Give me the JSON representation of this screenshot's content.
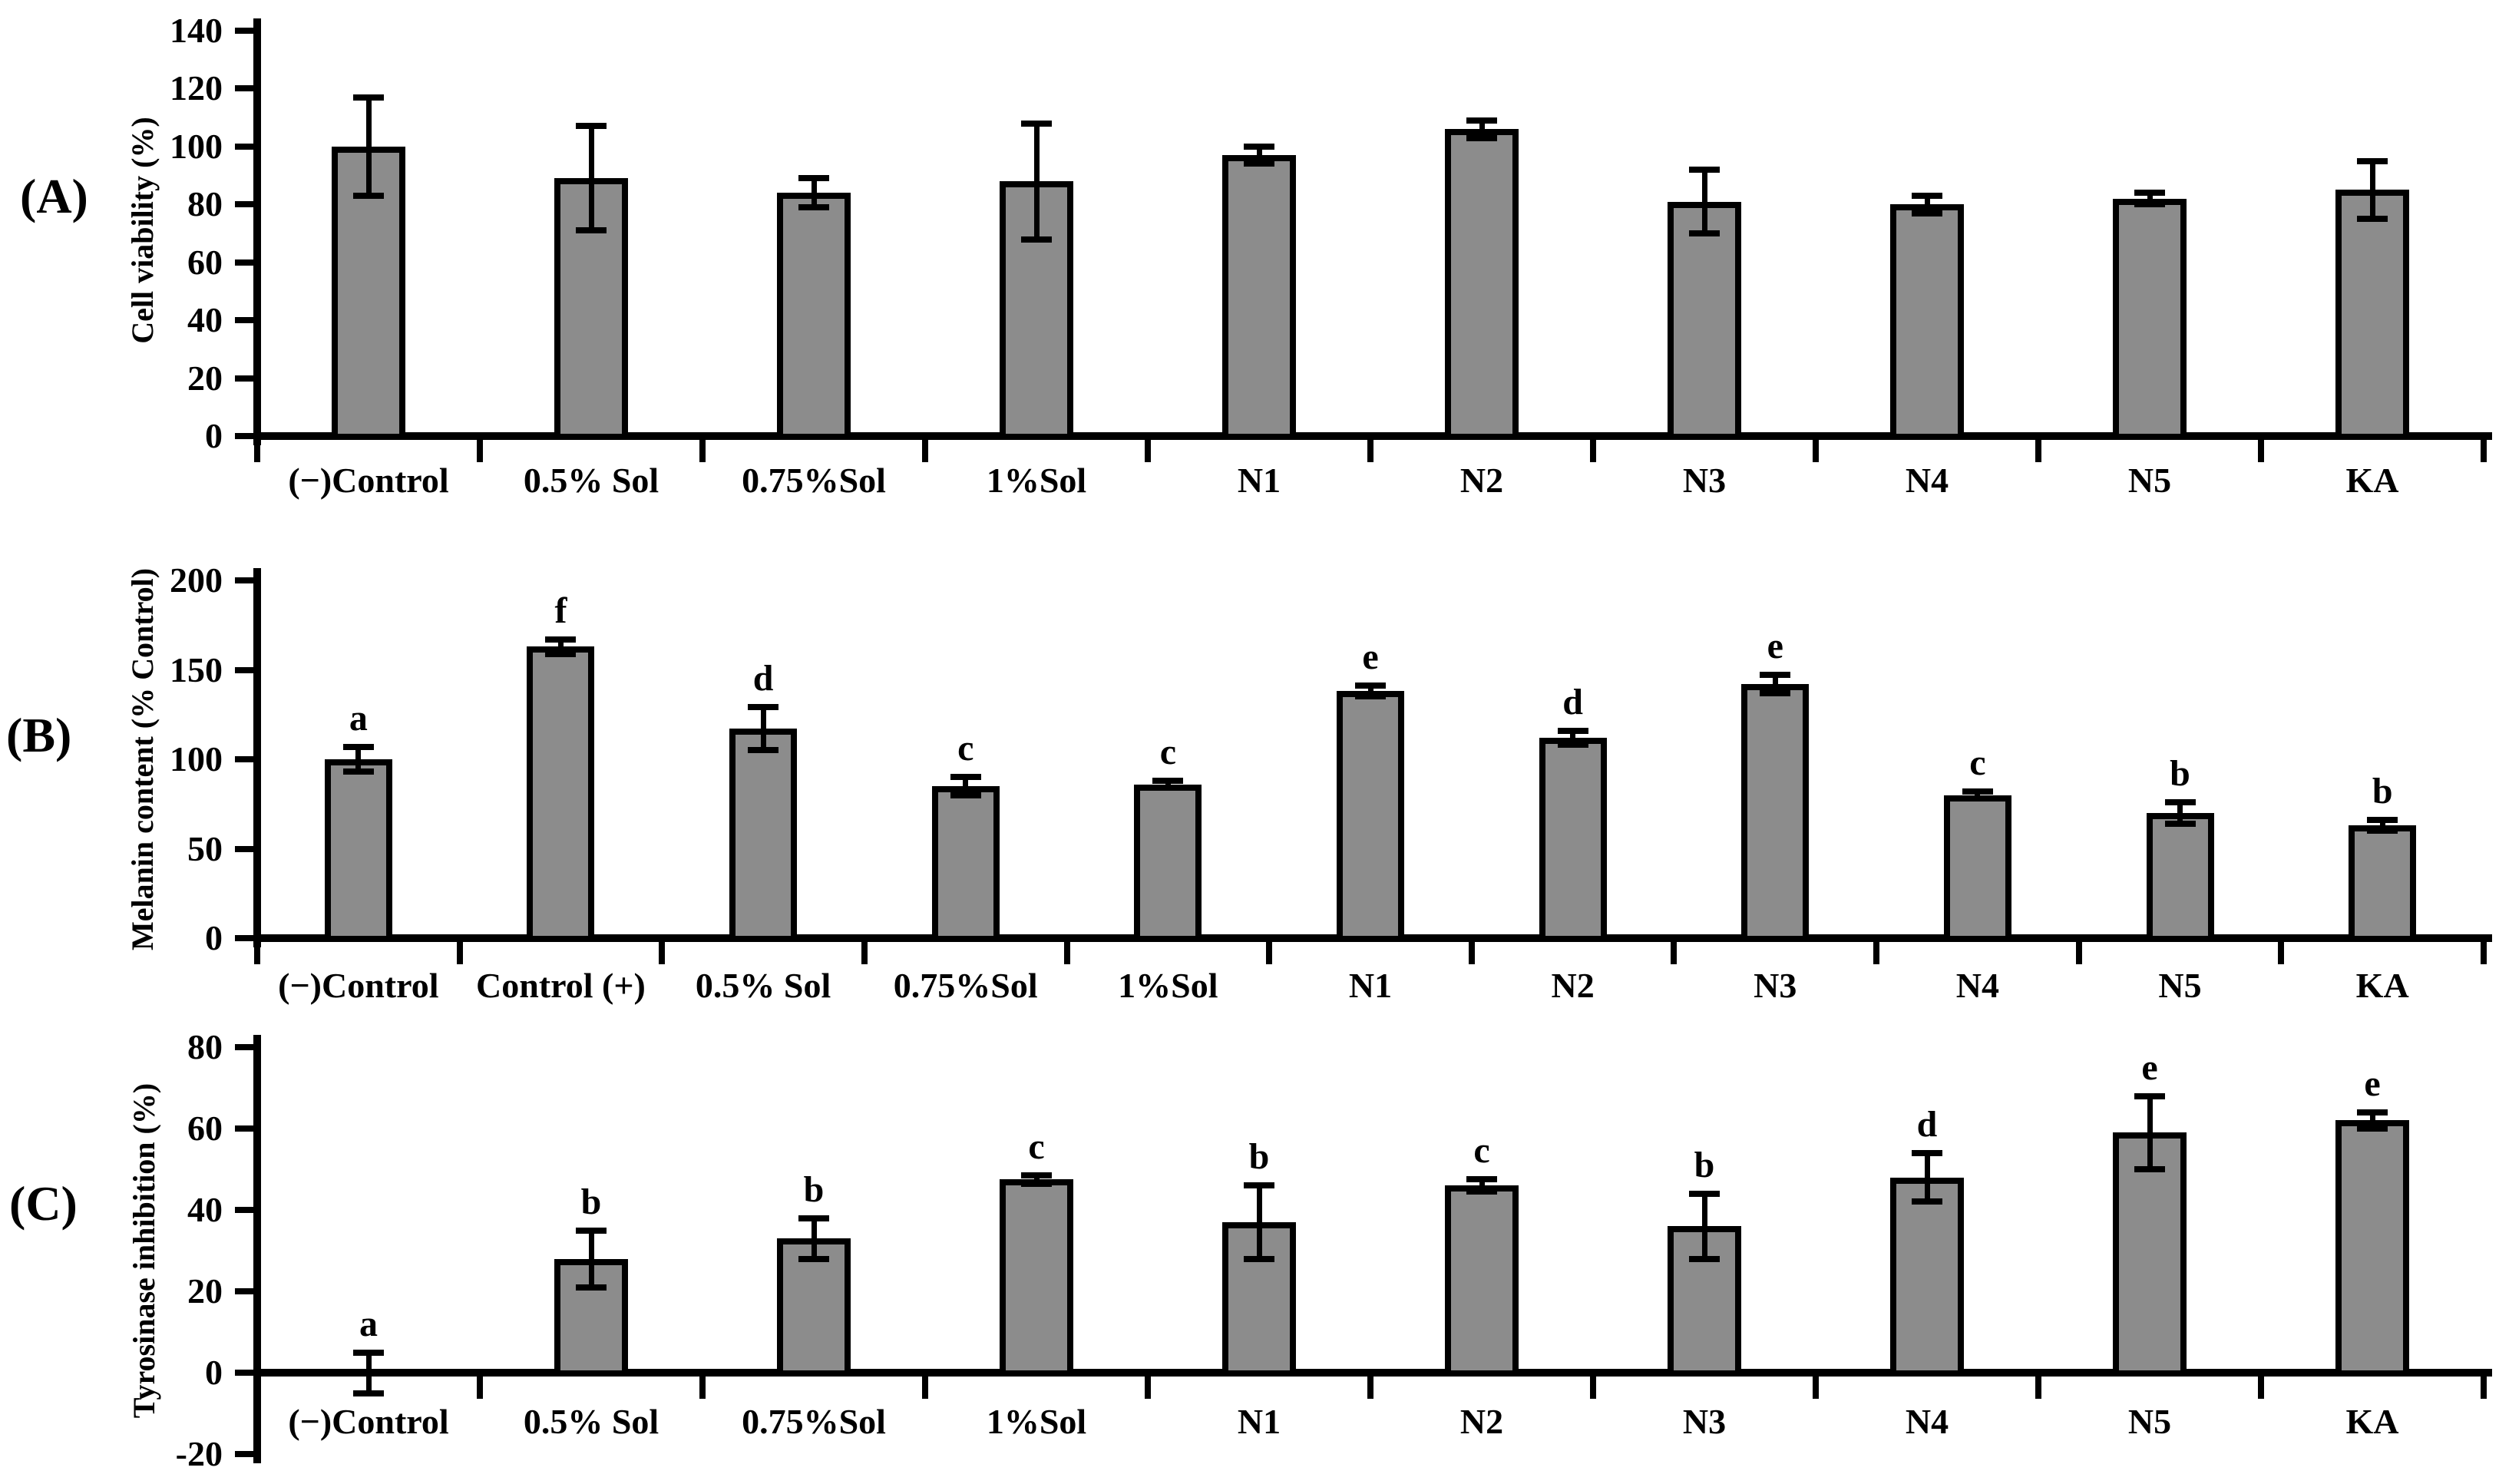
{
  "figure": {
    "description": "Three-panel bar chart figure: cell viability, melanin content and tyrosinase inhibition for Sol concentrations, N1-N5 samples and kojic acid (KA)"
  },
  "styles": {
    "bar_fill": "#8c8c8c",
    "axis_color": "#000000",
    "text_color": "#000000",
    "background": "#ffffff"
  },
  "chart_data": [
    {
      "id": "A",
      "type": "bar",
      "panel_label": "(A)",
      "title": "",
      "xlabel": "",
      "ylabel": "Cell viability (%)",
      "ylim": [
        0,
        140
      ],
      "ytick_step": 20,
      "grid": false,
      "legend": false,
      "error_bars": true,
      "categories": [
        "(−)Control",
        "0.5% Sol",
        "0.75%Sol",
        "1%Sol",
        "N1",
        "N2",
        "N3",
        "N4",
        "N5",
        "KA"
      ],
      "values": [
        100,
        89,
        84,
        88,
        97,
        106,
        81,
        80,
        82,
        85
      ],
      "errors": [
        17,
        18,
        5,
        20,
        3,
        3,
        11,
        3,
        2,
        10
      ],
      "sig_letters": null
    },
    {
      "id": "B",
      "type": "bar",
      "panel_label": "(B)",
      "title": "",
      "xlabel": "",
      "ylabel": "Melanin content (% Control)",
      "ylim": [
        0,
        200
      ],
      "ytick_step": 50,
      "grid": false,
      "legend": false,
      "error_bars": true,
      "categories": [
        "(−)Control",
        "Control (+)",
        "0.5% Sol",
        "0.75%Sol",
        "1%Sol",
        "N1",
        "N2",
        "N3",
        "N4",
        "N5",
        "KA"
      ],
      "values": [
        100,
        163,
        117,
        85,
        86,
        138,
        112,
        142,
        80,
        70,
        63
      ],
      "errors": [
        7,
        4,
        12,
        5,
        2,
        3,
        4,
        5,
        2,
        6,
        3
      ],
      "sig_letters": [
        "a",
        "f",
        "d",
        "c",
        "c",
        "e",
        "d",
        "e",
        "c",
        "b",
        "b"
      ]
    },
    {
      "id": "C",
      "type": "bar",
      "panel_label": "(C)",
      "title": "",
      "xlabel": "",
      "ylabel": "Tyrosinase inhibition (%)",
      "ylim": [
        -20,
        80
      ],
      "ytick_step": 20,
      "grid": false,
      "legend": false,
      "error_bars": true,
      "categories": [
        "(−)Control",
        "0.5% Sol",
        "0.75%Sol",
        "1%Sol",
        "N1",
        "N2",
        "N3",
        "N4",
        "N5",
        "KA"
      ],
      "values": [
        0,
        28,
        33,
        47.5,
        37,
        46,
        36,
        48,
        59,
        62
      ],
      "errors": [
        5,
        7,
        5,
        1,
        9,
        1.5,
        8,
        6,
        9,
        2
      ],
      "sig_letters": [
        "a",
        "b",
        "b",
        "c",
        "b",
        "c",
        "b",
        "d",
        "e",
        "e"
      ]
    }
  ]
}
